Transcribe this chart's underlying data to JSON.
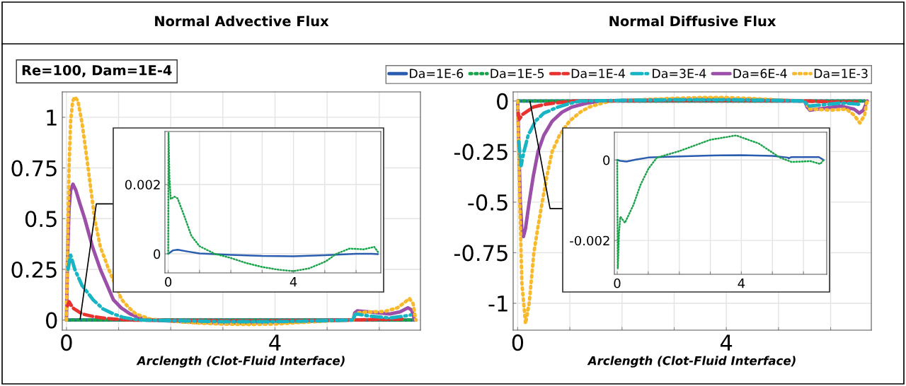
{
  "chart_data": [
    {
      "type": "line",
      "title": "Normal Advective Flux",
      "xlabel": "Arclength (Clot-Fluid Interface)",
      "annotations": [
        "Re=100, Dam=1E-4"
      ],
      "grid": true,
      "xlim": [
        -0.08,
        6.79
      ],
      "xticks": [
        0,
        {
          "value": 1,
          "label": null
        },
        {
          "value": 2,
          "label": null
        },
        {
          "value": 3,
          "label": null
        },
        4,
        {
          "value": 5,
          "label": null
        },
        {
          "value": 6,
          "label": null
        }
      ],
      "ylim": [
        -0.05,
        1.125
      ],
      "yticks": [
        0,
        0.25,
        0.5,
        0.75,
        1
      ],
      "series": [
        {
          "color": "#2a5db0",
          "line_style": "solid",
          "x": [
            0,
            6.7
          ],
          "values": [
            0,
            0
          ]
        },
        {
          "color": "#1aa34a",
          "line_style": "dotted",
          "x": [
            0,
            6.7
          ],
          "values": [
            0,
            0
          ]
        },
        {
          "color": "#e8322f",
          "line_style": "dashed",
          "x": [
            0.02,
            0.05,
            0.12,
            0.3,
            0.5,
            0.7,
            0.9,
            1.2,
            2,
            3,
            4,
            5,
            5.5,
            6,
            6.5
          ],
          "values": [
            0.07,
            0.09,
            0.06,
            0.03,
            0.018,
            0.01,
            0.005,
            0,
            -0.002,
            -0.004,
            -0.004,
            -0.002,
            0,
            0.003,
            0.005
          ]
        },
        {
          "color": "#17b5c4",
          "line_style": "dashdot",
          "x": [
            0.03,
            0.08,
            0.16,
            0.3,
            0.51,
            0.7,
            0.9,
            1.1,
            1.4,
            2,
            3,
            4,
            5,
            5.5,
            5.53,
            5.56,
            5.8,
            6.2,
            6.5,
            6.6
          ],
          "values": [
            0.25,
            0.32,
            0.25,
            0.17,
            0.1,
            0.055,
            0.03,
            0.012,
            0,
            -0.003,
            -0.008,
            -0.008,
            -0.003,
            0,
            0.025,
            0.03,
            0.02,
            0.01,
            0.02,
            0.025
          ]
        },
        {
          "color": "#9b4fa8",
          "line_style": "solid",
          "x": [
            0,
            0.02,
            0.05,
            0.08,
            0.125,
            0.18,
            0.25,
            0.35,
            0.5,
            0.65,
            0.8,
            0.9,
            1.05,
            1.22,
            1.4,
            1.6,
            2.0,
            2.5,
            3.0,
            3.5,
            4.0,
            4.5,
            5.0,
            5.5,
            5.53,
            5.58,
            5.8,
            6.2,
            6.4,
            6.55,
            6.62,
            6.68
          ],
          "values": [
            0,
            0.3,
            0.55,
            0.64,
            0.67,
            0.64,
            0.58,
            0.5,
            0.36,
            0.25,
            0.16,
            0.1,
            0.06,
            0.03,
            0.012,
            0,
            -0.005,
            -0.012,
            -0.015,
            -0.015,
            -0.013,
            -0.008,
            -0.003,
            0,
            0.035,
            0.045,
            0.04,
            0.03,
            0.04,
            0.06,
            0.05,
            0
          ]
        },
        {
          "color": "#f9b92c",
          "line_style": "dotted",
          "x": [
            0,
            0.02,
            0.05,
            0.08,
            0.12,
            0.16,
            0.22,
            0.3,
            0.4,
            0.54,
            0.65,
            0.81,
            1.06,
            1.2,
            1.33,
            1.6,
            2.0,
            2.5,
            3.0,
            3.5,
            4.0,
            4.5,
            5.0,
            5.5,
            5.52,
            5.56,
            5.8,
            6.1,
            6.35,
            6.5,
            6.58,
            6.65,
            6.7
          ],
          "values": [
            0,
            0.35,
            0.75,
            0.98,
            1.08,
            1.1,
            1.08,
            0.97,
            0.78,
            0.5,
            0.36,
            0.25,
            0.1,
            0.06,
            0.03,
            0.005,
            -0.005,
            -0.015,
            -0.02,
            -0.022,
            -0.02,
            -0.012,
            -0.005,
            0,
            0.02,
            0.035,
            0.04,
            0.042,
            0.06,
            0.09,
            0.106,
            0.08,
            0
          ]
        }
      ]
    },
    {
      "type": "line",
      "grid": true,
      "xlim": [
        -0.105,
        6.79
      ],
      "xticks": [
        0,
        {
          "value": 1,
          "label": null
        },
        {
          "value": 2,
          "label": null
        },
        {
          "value": 3,
          "label": null
        },
        4,
        {
          "value": 5,
          "label": null
        },
        {
          "value": 6,
          "label": null
        }
      ],
      "ylim": [
        -0.00055,
        0.00353
      ],
      "yticks": [
        0,
        0.002
      ],
      "series": [
        {
          "color": "#2a5db0",
          "line_style": "solid",
          "x": [
            0,
            0.15,
            0.3,
            0.6,
            1.0,
            2.0,
            3.0,
            4.0,
            5.0,
            5.5,
            6.0,
            6.5,
            6.7
          ],
          "values": [
            0,
            0.0001,
            0.00012,
            7e-05,
            1e-05,
            -3e-05,
            -6e-05,
            -7e-05,
            -4e-05,
            -2e-05,
            0,
            0,
            -1e-05
          ]
        },
        {
          "color": "#1aa34a",
          "line_style": "dotted",
          "x": [
            0,
            0.01,
            0.04,
            0.08,
            0.2,
            0.3,
            0.51,
            0.74,
            1.0,
            1.49,
            2.0,
            2.47,
            3.0,
            3.53,
            4.0,
            4.5,
            5.03,
            5.37,
            5.79,
            6.24,
            6.58,
            6.7
          ],
          "values": [
            0,
            0.0035,
            0.0022,
            0.00158,
            0.00165,
            0.0016,
            0.0011,
            0.00052,
            0.00022,
            0,
            -0.00012,
            -0.00026,
            -0.00038,
            -0.00046,
            -0.0005,
            -0.00042,
            -0.00022,
            0,
            0.00015,
            0.00013,
            0.0002,
            5e-05
          ]
        }
      ]
    },
    {
      "type": "line",
      "title": "Normal Diffusive Flux",
      "xlabel": "Arclength (Clot-Fluid Interface)",
      "grid": true,
      "legend": "top",
      "xlim": [
        -0.087,
        6.78
      ],
      "xticks": [
        0,
        {
          "value": 1,
          "label": null
        },
        {
          "value": 2,
          "label": null
        },
        {
          "value": 3,
          "label": null
        },
        4,
        {
          "value": 5,
          "label": null
        },
        {
          "value": 6,
          "label": null
        }
      ],
      "ylim": [
        -1.133,
        0.045
      ],
      "yticks": [
        0,
        -0.25,
        -0.5,
        -0.75,
        -1
      ],
      "series": [
        {
          "name": "Da=1E-6",
          "color": "#2a5db0",
          "line_style": "solid",
          "x": [
            0,
            6.65
          ],
          "values": [
            0,
            0
          ]
        },
        {
          "name": "Da=1E-5",
          "color": "#1aa34a",
          "line_style": "dotted",
          "x": [
            0,
            6.65
          ],
          "values": [
            0,
            0
          ]
        },
        {
          "name": "Da=1E-4",
          "color": "#e8322f",
          "line_style": "dashed",
          "x": [
            0.01,
            0.03,
            0.1,
            0.3,
            0.5,
            0.7,
            1.1,
            2,
            3,
            4,
            5,
            5.5,
            6,
            6.5
          ],
          "values": [
            -0.06,
            -0.09,
            -0.065,
            -0.03,
            -0.018,
            -0.01,
            0,
            0.002,
            0.003,
            0.003,
            0.002,
            0,
            -0.004,
            -0.005
          ]
        },
        {
          "name": "Da=3E-4",
          "color": "#17b5c4",
          "line_style": "dashdot",
          "x": [
            0.02,
            0.065,
            0.12,
            0.2,
            0.34,
            0.5,
            0.77,
            1.0,
            1.2,
            2,
            3,
            4,
            5,
            5.5,
            5.55,
            5.6,
            6.2,
            6.5,
            6.6
          ],
          "values": [
            -0.2,
            -0.32,
            -0.25,
            -0.17,
            -0.1,
            -0.06,
            -0.03,
            -0.012,
            0,
            0.003,
            0.006,
            0.006,
            0.003,
            0,
            -0.02,
            -0.025,
            -0.01,
            -0.015,
            -0.02
          ]
        },
        {
          "name": "Da=6E-4",
          "color": "#9b4fa8",
          "line_style": "solid",
          "x": [
            0,
            0.02,
            0.05,
            0.08,
            0.11,
            0.15,
            0.22,
            0.3,
            0.39,
            0.5,
            0.66,
            0.85,
            1.04,
            1.3,
            1.58,
            2.5,
            3.5,
            4.5,
            5.5,
            5.55,
            5.6,
            5.9,
            6.2,
            6.45,
            6.55,
            6.63,
            6.7
          ],
          "values": [
            0,
            -0.2,
            -0.5,
            -0.64,
            -0.67,
            -0.63,
            -0.5,
            -0.37,
            -0.25,
            -0.17,
            -0.1,
            -0.055,
            -0.03,
            -0.012,
            0,
            0.005,
            0.01,
            0.008,
            0,
            -0.03,
            -0.045,
            -0.035,
            -0.025,
            -0.04,
            -0.06,
            -0.045,
            0
          ]
        },
        {
          "name": "Da=1E-3",
          "color": "#f9b92c",
          "line_style": "dotted",
          "x": [
            0,
            0.02,
            0.04,
            0.08,
            0.15,
            0.22,
            0.31,
            0.39,
            0.47,
            0.56,
            0.66,
            0.8,
            0.99,
            1.2,
            1.37,
            1.6,
            1.8,
            2.5,
            3.0,
            3.5,
            4.0,
            4.5,
            5.0,
            5.5,
            5.55,
            5.6,
            6.0,
            6.3,
            6.45,
            6.56,
            6.65,
            6.7
          ],
          "values": [
            0,
            -0.25,
            -0.5,
            -0.9,
            -1.1,
            -1.0,
            -0.75,
            -0.62,
            -0.5,
            -0.37,
            -0.25,
            -0.17,
            -0.1,
            -0.055,
            -0.03,
            -0.012,
            0,
            0.008,
            0.013,
            0.017,
            0.017,
            0.012,
            0.005,
            0,
            -0.02,
            -0.04,
            -0.045,
            -0.04,
            -0.07,
            -0.109,
            -0.07,
            0
          ]
        }
      ]
    },
    {
      "type": "line",
      "grid": true,
      "xlim": [
        -0.091,
        6.75
      ],
      "xticks": [
        0,
        {
          "value": 1,
          "label": null
        },
        {
          "value": 2,
          "label": null
        },
        {
          "value": 3,
          "label": null
        },
        4,
        {
          "value": 5,
          "label": null
        },
        {
          "value": 6,
          "label": null
        }
      ],
      "ylim": [
        -0.00284,
        0.00069
      ],
      "yticks": [
        0,
        -0.002
      ],
      "series": [
        {
          "color": "#2a5db0",
          "line_style": "solid",
          "x": [
            0,
            0.1,
            0.3,
            0.6,
            1.0,
            2.0,
            3.0,
            4.0,
            5.0,
            5.5,
            5.52,
            5.6,
            6.0,
            6.5,
            6.65
          ],
          "values": [
            0,
            -2e-05,
            -4e-05,
            1e-05,
            6e-05,
            9e-05,
            0.00011,
            0.00012,
            0.0001,
            6e-05,
            4e-05,
            7e-05,
            7e-05,
            7e-05,
            0
          ]
        },
        {
          "color": "#1aa34a",
          "line_style": "dotted",
          "x": [
            0,
            0.01,
            0.02,
            0.06,
            0.1,
            0.25,
            0.52,
            0.75,
            1.01,
            1.28,
            2.0,
            2.99,
            3.83,
            4.56,
            5.24,
            5.62,
            6.23,
            6.54,
            6.65
          ],
          "values": [
            0,
            -0.0015,
            -0.0027,
            -0.0018,
            -0.00141,
            -0.00156,
            -0.00112,
            -0.00062,
            -0.00021,
            6e-05,
            0.00022,
            0.0005,
            0.00061,
            0.00041,
            6e-05,
            -5e-05,
            -3e-05,
            -0.0001,
            0
          ]
        }
      ]
    }
  ]
}
